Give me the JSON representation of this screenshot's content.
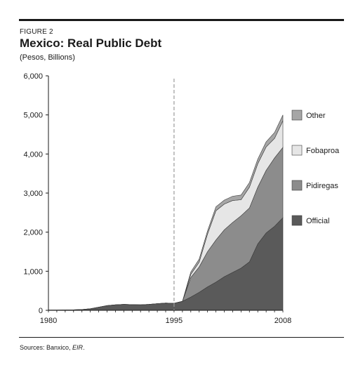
{
  "figure": {
    "label": "FIGURE 2",
    "title": "Mexico: Real Public Debt",
    "subtitle": "(Pesos, Billions)"
  },
  "source": {
    "prefix": "Sources: Banxico, ",
    "italic": "EIR",
    "suffix": "."
  },
  "colors": {
    "official": "#5a5a5a",
    "pidiregas": "#8c8c8c",
    "fobaproa": "#e6e6e6",
    "other": "#a6a6a6",
    "axis": "#1a1a1a",
    "reference_line": "#9a9a9a"
  },
  "chart_data": {
    "type": "area",
    "stacked": true,
    "title": "Mexico: Real Public Debt",
    "ylabel": "(Pesos, Billions)",
    "xlim": [
      1980,
      2008
    ],
    "ylim": [
      0,
      6000
    ],
    "y_ticks": [
      0,
      1000,
      2000,
      3000,
      4000,
      5000,
      6000
    ],
    "y_tick_labels": [
      "0",
      "1,000",
      "2,000",
      "3,000",
      "4,000",
      "5,000",
      "6,000"
    ],
    "x_tick_labels": [
      {
        "x": 1980,
        "label": "1980"
      },
      {
        "x": 1995,
        "label": "1995"
      },
      {
        "x": 2008,
        "label": "2008"
      }
    ],
    "reference_line_x": 1995,
    "legend_position": "right",
    "x": [
      1980,
      1981,
      1982,
      1983,
      1984,
      1985,
      1986,
      1987,
      1988,
      1989,
      1990,
      1991,
      1992,
      1993,
      1994,
      1995,
      1996,
      1997,
      1998,
      1999,
      2000,
      2001,
      2002,
      2003,
      2004,
      2005,
      2006,
      2007,
      2008
    ],
    "series": [
      {
        "name": "Official",
        "color_key": "official",
        "values": [
          5,
          6,
          8,
          12,
          20,
          40,
          80,
          120,
          140,
          150,
          145,
          140,
          150,
          170,
          185,
          180,
          230,
          340,
          460,
          600,
          720,
          860,
          970,
          1080,
          1240,
          1700,
          1980,
          2150,
          2370
        ]
      },
      {
        "name": "Pidiregas",
        "color_key": "pidiregas",
        "values": [
          0,
          0,
          0,
          0,
          0,
          0,
          0,
          0,
          0,
          0,
          0,
          0,
          0,
          0,
          0,
          0,
          0,
          500,
          650,
          900,
          1080,
          1200,
          1280,
          1340,
          1380,
          1450,
          1600,
          1750,
          1800
        ]
      },
      {
        "name": "Fobaproa",
        "color_key": "fobaproa",
        "values": [
          0,
          0,
          0,
          0,
          0,
          0,
          0,
          0,
          0,
          0,
          0,
          0,
          0,
          0,
          0,
          0,
          0,
          80,
          120,
          450,
          750,
          660,
          560,
          410,
          530,
          600,
          600,
          500,
          680
        ]
      },
      {
        "name": "Other",
        "color_key": "other",
        "values": [
          0,
          0,
          0,
          0,
          0,
          0,
          0,
          0,
          0,
          0,
          0,
          0,
          0,
          0,
          0,
          0,
          0,
          60,
          80,
          80,
          100,
          100,
          110,
          120,
          120,
          120,
          130,
          150,
          150
        ]
      }
    ]
  }
}
